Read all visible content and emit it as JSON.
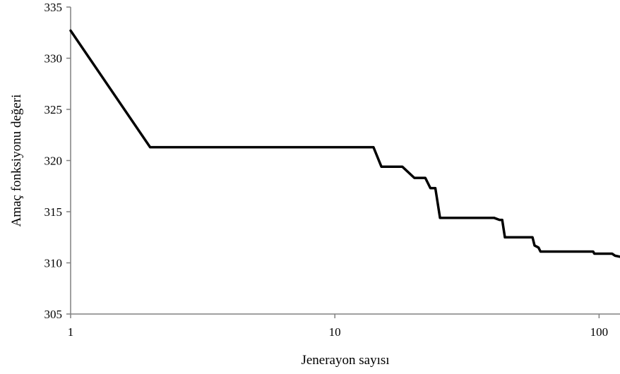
{
  "chart_data": {
    "type": "line",
    "x_scale": "log",
    "xlabel": "Jenerayon sayısı",
    "ylabel": "Amaç fonksiyonu değeri",
    "xlim": [
      1,
      120
    ],
    "ylim": [
      305,
      335
    ],
    "x_ticks": [
      1,
      10,
      100
    ],
    "x_tick_labels": [
      "1",
      "10",
      "100"
    ],
    "y_ticks": [
      305,
      310,
      315,
      320,
      325,
      330,
      335
    ],
    "y_tick_labels": [
      "305",
      "310",
      "315",
      "320",
      "325",
      "330",
      "335"
    ],
    "grid": false,
    "legend": false,
    "series": [
      {
        "color": "#000000",
        "x": [
          1,
          2,
          14,
          15,
          18,
          20,
          22,
          23,
          24,
          25,
          26,
          40,
          42,
          43,
          44,
          56,
          57,
          59,
          60,
          95,
          96,
          112,
          115,
          120
        ],
        "y": [
          332.7,
          321.3,
          321.3,
          319.4,
          319.4,
          318.3,
          318.3,
          317.3,
          317.3,
          314.4,
          314.4,
          314.4,
          314.2,
          314.2,
          312.5,
          312.5,
          311.7,
          311.5,
          311.1,
          311.1,
          310.9,
          310.9,
          310.7,
          310.6
        ]
      }
    ]
  }
}
